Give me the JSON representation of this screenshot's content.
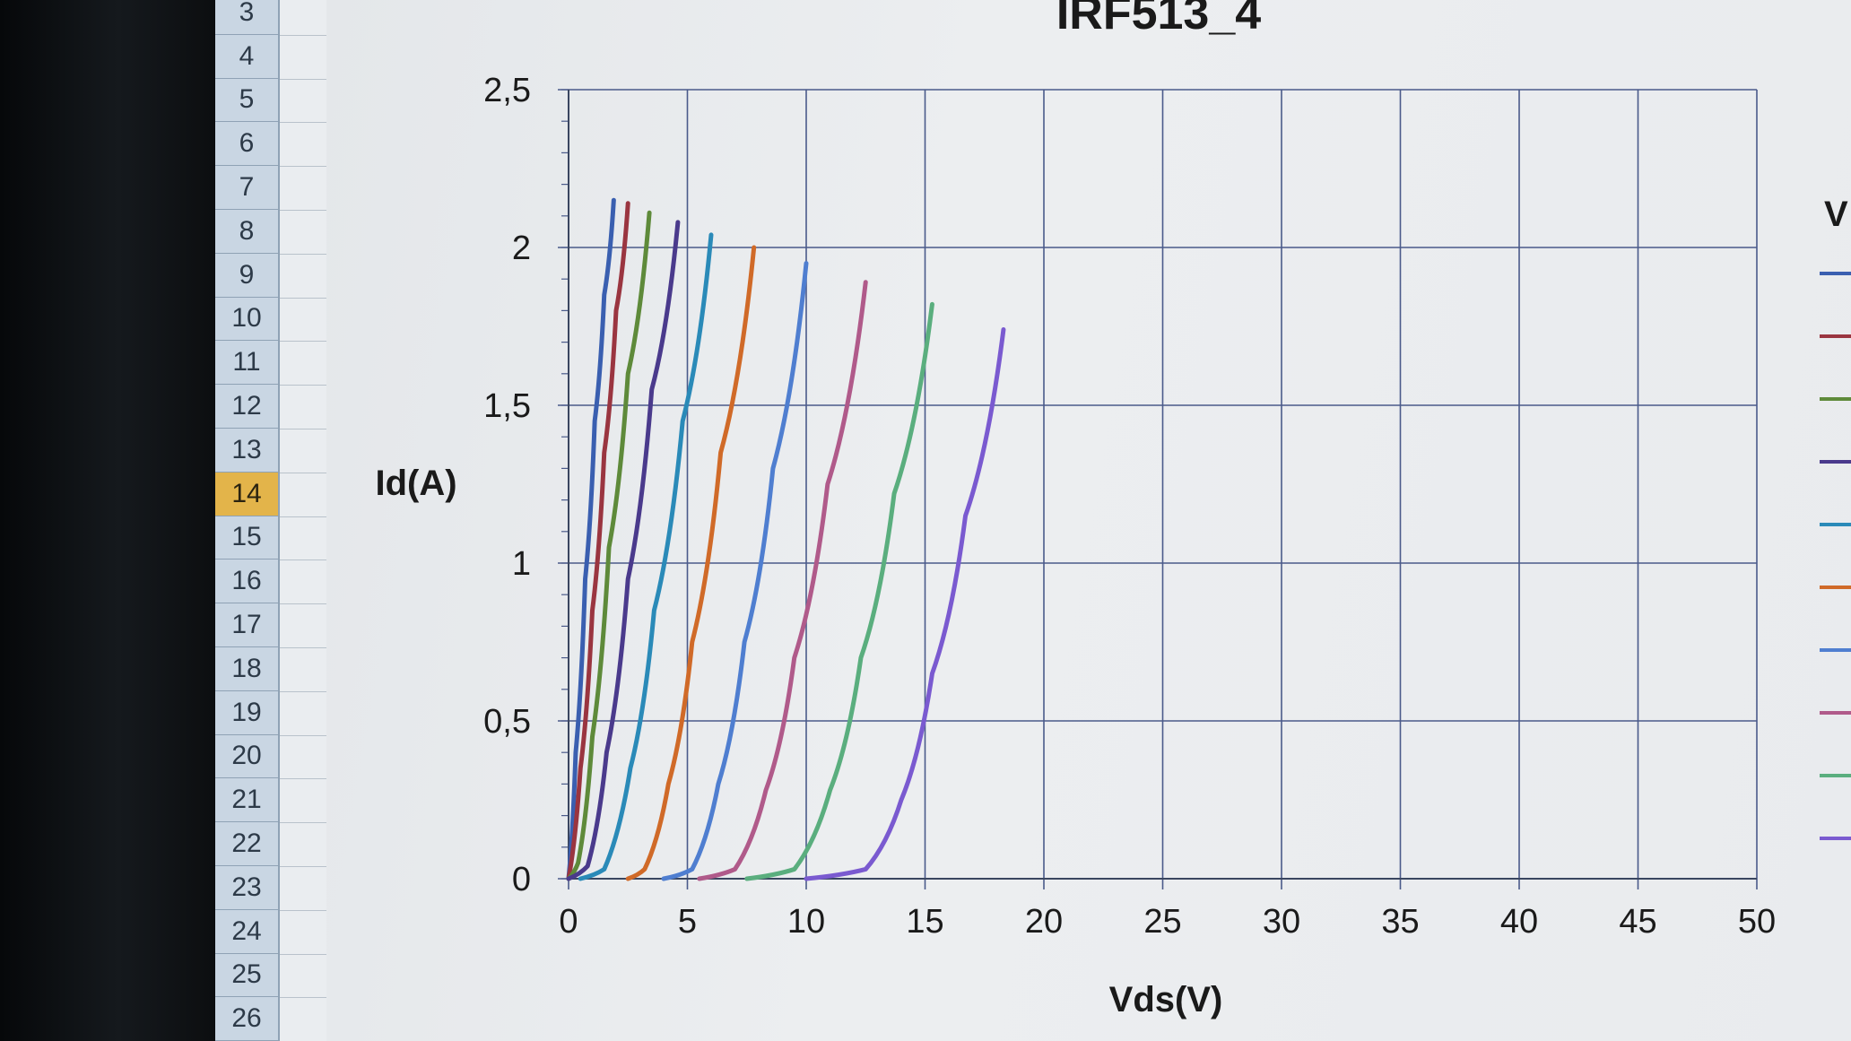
{
  "spreadsheet": {
    "row_headers": [
      "3",
      "4",
      "5",
      "6",
      "7",
      "8",
      "9",
      "10",
      "11",
      "12",
      "13",
      "14",
      "15",
      "16",
      "17",
      "18",
      "19",
      "20",
      "21",
      "22",
      "23",
      "24",
      "25",
      "26"
    ],
    "active_row": "14"
  },
  "chart_data": {
    "type": "line",
    "title": "IRF513_4",
    "xlabel": "Vds(V)",
    "ylabel": "Id(A)",
    "xlim": [
      0,
      50
    ],
    "ylim": [
      0,
      2.5
    ],
    "x_ticks": [
      "0",
      "5",
      "10",
      "15",
      "20",
      "25",
      "30",
      "35",
      "40",
      "45",
      "50"
    ],
    "y_ticks": [
      "0",
      "0,5",
      "1",
      "1,5",
      "2",
      "2,5"
    ],
    "grid": true,
    "legend_title": "V",
    "legend_placement": "right, partially cut off",
    "series": [
      {
        "color": "#3a5fb0",
        "values": [
          [
            0,
            0
          ],
          [
            0.3,
            0.4
          ],
          [
            0.7,
            0.95
          ],
          [
            1.1,
            1.45
          ],
          [
            1.5,
            1.85
          ],
          [
            1.9,
            2.15
          ]
        ]
      },
      {
        "color": "#9a3540",
        "values": [
          [
            0,
            0
          ],
          [
            0.5,
            0.35
          ],
          [
            1,
            0.85
          ],
          [
            1.5,
            1.35
          ],
          [
            2,
            1.8
          ],
          [
            2.5,
            2.14
          ]
        ]
      },
      {
        "color": "#5e8a3a",
        "values": [
          [
            0,
            0
          ],
          [
            0.4,
            0.05
          ],
          [
            1,
            0.45
          ],
          [
            1.7,
            1.05
          ],
          [
            2.5,
            1.6
          ],
          [
            3.4,
            2.11
          ]
        ]
      },
      {
        "color": "#4a3a8c",
        "values": [
          [
            0,
            0
          ],
          [
            0.8,
            0.04
          ],
          [
            1.6,
            0.4
          ],
          [
            2.5,
            0.95
          ],
          [
            3.5,
            1.55
          ],
          [
            4.6,
            2.08
          ]
        ]
      },
      {
        "color": "#2a8ab8",
        "values": [
          [
            0.5,
            0
          ],
          [
            1.5,
            0.03
          ],
          [
            2.6,
            0.35
          ],
          [
            3.6,
            0.85
          ],
          [
            4.8,
            1.45
          ],
          [
            6.0,
            2.04
          ]
        ]
      },
      {
        "color": "#d06a28",
        "values": [
          [
            2.5,
            0
          ],
          [
            3.2,
            0.03
          ],
          [
            4.2,
            0.3
          ],
          [
            5.2,
            0.75
          ],
          [
            6.4,
            1.35
          ],
          [
            7.8,
            2.0
          ]
        ]
      },
      {
        "color": "#4f7ed0",
        "values": [
          [
            4,
            0
          ],
          [
            5.2,
            0.03
          ],
          [
            6.3,
            0.3
          ],
          [
            7.4,
            0.75
          ],
          [
            8.6,
            1.3
          ],
          [
            10,
            1.95
          ]
        ]
      },
      {
        "color": "#b05a8a",
        "values": [
          [
            5.5,
            0
          ],
          [
            7,
            0.03
          ],
          [
            8.3,
            0.28
          ],
          [
            9.5,
            0.7
          ],
          [
            10.9,
            1.25
          ],
          [
            12.5,
            1.89
          ]
        ]
      },
      {
        "color": "#5aae7e",
        "values": [
          [
            7.5,
            0
          ],
          [
            9.5,
            0.03
          ],
          [
            11,
            0.28
          ],
          [
            12.3,
            0.7
          ],
          [
            13.7,
            1.22
          ],
          [
            15.3,
            1.82
          ]
        ]
      },
      {
        "color": "#7a5ad0",
        "values": [
          [
            10,
            0
          ],
          [
            12.5,
            0.03
          ],
          [
            14,
            0.25
          ],
          [
            15.3,
            0.65
          ],
          [
            16.7,
            1.15
          ],
          [
            18.3,
            1.74
          ]
        ]
      }
    ]
  }
}
